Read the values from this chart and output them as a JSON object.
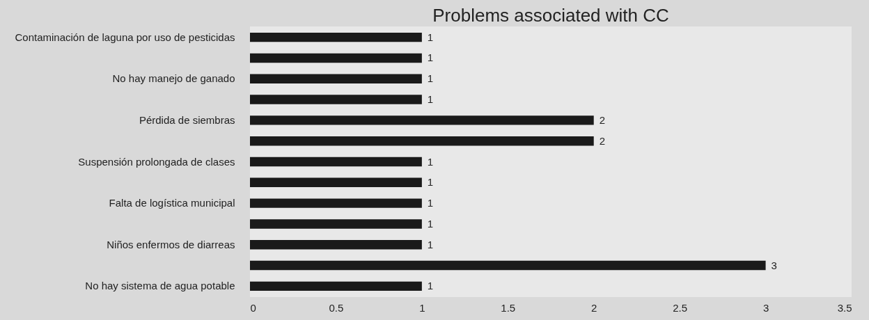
{
  "chart_data": {
    "type": "bar",
    "orientation": "horizontal",
    "title": "Problems associated with CC",
    "categories": [
      "Contaminación de laguna por uso de pesticidas",
      null,
      "No hay manejo de ganado",
      null,
      "Pérdida de siembras",
      null,
      "Suspensión prolongada de clases",
      null,
      "Falta de logística municipal",
      null,
      "Niños enfermos de diarreas",
      null,
      "No hay sistema de agua potable"
    ],
    "values": [
      1,
      1,
      1,
      1,
      2,
      2,
      1,
      1,
      1,
      1,
      1,
      3,
      1
    ],
    "color": "#1a1a1a",
    "xlim": [
      0,
      3.5
    ],
    "xticks": [
      0,
      0.5,
      1,
      1.5,
      2,
      2.5,
      3,
      3.5
    ],
    "data_labels": true,
    "grid": false
  }
}
